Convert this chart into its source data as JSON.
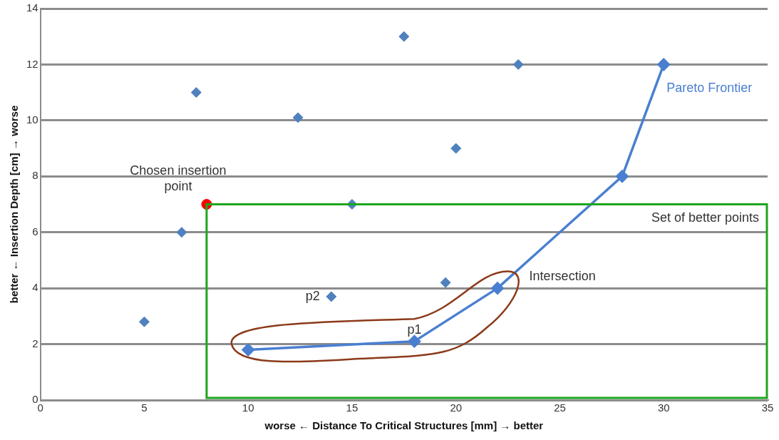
{
  "chart_data": {
    "type": "scatter",
    "xlabel": "worse ← Distance To Critical Structures [mm] → better",
    "ylabel": "better ← Insertion Depth [cm] → worse",
    "xlim": [
      0,
      35
    ],
    "xticks": [
      0,
      5,
      10,
      15,
      20,
      25,
      30,
      35
    ],
    "ylim": [
      0,
      14
    ],
    "yticks": [
      0,
      2,
      4,
      6,
      8,
      10,
      12,
      14
    ],
    "grid": "y",
    "legend": false,
    "marker": "diamond",
    "series": [
      {
        "type": "scatter",
        "color": "#4f81bd",
        "x": [
          5,
          6.8,
          7.5,
          12.4,
          14,
          15,
          17.5,
          19.5,
          20,
          23
        ],
        "values": [
          2.8,
          6,
          11,
          10.1,
          3.7,
          7,
          13,
          4.2,
          9,
          12
        ]
      },
      {
        "type": "line",
        "name": "Pareto Frontier",
        "color": "#4a7fd0",
        "x": [
          10,
          18,
          22,
          28,
          30
        ],
        "values": [
          1.8,
          2.1,
          4,
          8,
          12
        ]
      },
      {
        "type": "scatter",
        "marker": "circle",
        "color": "#ff0000",
        "x": [
          8
        ],
        "values": [
          7
        ]
      }
    ],
    "annotations": [
      {
        "text": "Chosen insertion point",
        "x": 8,
        "y": 7
      },
      "Set of better points",
      "Intersection",
      {
        "text": "p1",
        "x": 18,
        "y": 2.1
      },
      {
        "text": "p2",
        "x": 14,
        "y": 3.7
      }
    ]
  }
}
